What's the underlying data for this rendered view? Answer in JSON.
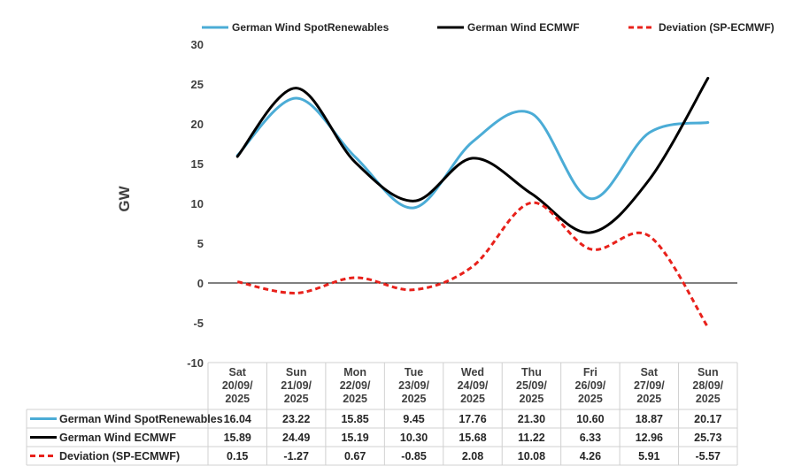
{
  "chart_data": {
    "type": "line",
    "ylabel": "GW",
    "xlabel": "",
    "ylim": [
      -10,
      30
    ],
    "yticks": [
      30,
      25,
      20,
      15,
      10,
      5,
      0,
      -5,
      -10
    ],
    "categories": [
      [
        "Sat",
        "20/09/",
        "2025"
      ],
      [
        "Sun",
        "21/09/",
        "2025"
      ],
      [
        "Mon",
        "22/09/",
        "2025"
      ],
      [
        "Tue",
        "23/09/",
        "2025"
      ],
      [
        "Wed",
        "24/09/",
        "2025"
      ],
      [
        "Thu",
        "25/09/",
        "2025"
      ],
      [
        "Fri",
        "26/09/",
        "2025"
      ],
      [
        "Sat",
        "27/09/",
        "2025"
      ],
      [
        "Sun",
        "28/09/",
        "2025"
      ]
    ],
    "series": [
      {
        "name": "German Wind SpotRenewables",
        "color": "#4bacd6",
        "dash": "solid",
        "values": [
          16.04,
          23.22,
          15.85,
          9.45,
          17.76,
          21.3,
          10.6,
          18.87,
          20.17
        ],
        "labels": [
          "16.04",
          "23.22",
          "15.85",
          "9.45",
          "17.76",
          "21.30",
          "10.60",
          "18.87",
          "20.17"
        ]
      },
      {
        "name": "German Wind ECMWF",
        "color": "#000000",
        "dash": "solid",
        "values": [
          15.89,
          24.49,
          15.19,
          10.3,
          15.68,
          11.22,
          6.33,
          12.96,
          25.73
        ],
        "labels": [
          "15.89",
          "24.49",
          "15.19",
          "10.30",
          "15.68",
          "11.22",
          "6.33",
          "12.96",
          "25.73"
        ]
      },
      {
        "name": "Deviation (SP-ECMWF)",
        "color": "#e8211b",
        "dash": "dashed",
        "values": [
          0.15,
          -1.27,
          0.67,
          -0.85,
          2.08,
          10.08,
          4.26,
          5.91,
          -5.57
        ],
        "labels": [
          "0.15",
          "-1.27",
          "0.67",
          "-0.85",
          "2.08",
          "10.08",
          "4.26",
          "5.91",
          "-5.57"
        ]
      }
    ],
    "legend": "top",
    "grid": false,
    "data_table": true
  }
}
